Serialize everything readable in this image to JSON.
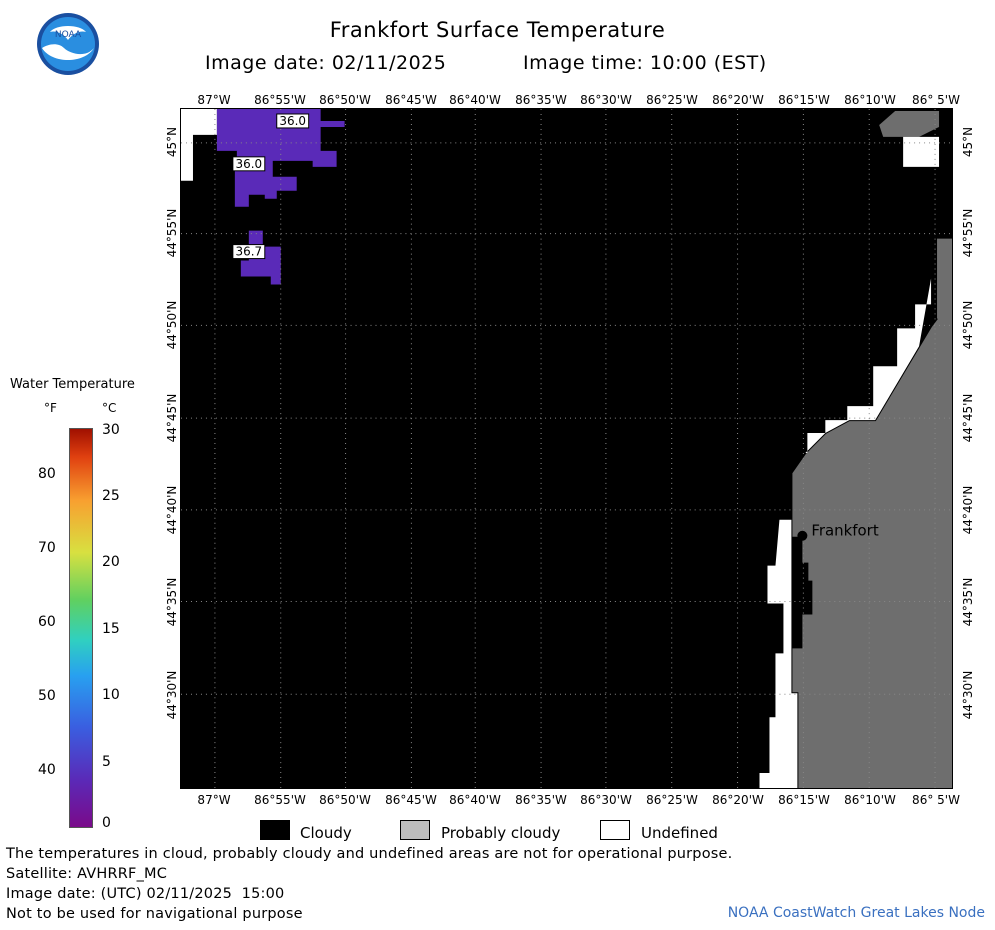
{
  "title": "Frankfort Surface Temperature",
  "image_date_label": "Image date: 02/11/2025",
  "image_time_label": "Image time: 10:00 (EST)",
  "map": {
    "location_label": "Frankfort",
    "lon_labels": [
      "87°W",
      "86°55'W",
      "86°50'W",
      "86°45'W",
      "86°40'W",
      "86°35'W",
      "86°30'W",
      "86°25'W",
      "86°20'W",
      "86°15'W",
      "86°10'W",
      "86° 5'W"
    ],
    "lat_labels": [
      "45°N",
      "44°55'N",
      "44°50'N",
      "44°45'N",
      "44°40'N",
      "44°35'N",
      "44°30'N"
    ],
    "temperature_labels": [
      "36.0",
      "36.0",
      "36.7"
    ],
    "colors": {
      "cloudy": "#000000",
      "probably_cloudy": "#6e6e6e",
      "undefined": "#ffffff",
      "water_36": "#5a2ab8"
    }
  },
  "legend": {
    "title": "Water Temperature",
    "unit_f": "°F",
    "unit_c": "°C",
    "f_ticks": [
      "80",
      "70",
      "60",
      "50",
      "40"
    ],
    "c_ticks": [
      "30",
      "25",
      "20",
      "15",
      "10",
      "5",
      "0"
    ]
  },
  "keys": {
    "cloudy": "Cloudy",
    "probably_cloudy": "Probably cloudy",
    "undefined": "Undefined"
  },
  "footer": {
    "disclaimer": "The temperatures in cloud, probably cloudy and undefined areas are not for operational purpose.",
    "satellite": "Satellite: AVHRRF_MC",
    "utc_date": "Image date: (UTC) 02/11/2025  15:00",
    "nav_warning": "Not to be used for navigational purpose",
    "credit": "NOAA CoastWatch Great Lakes Node"
  }
}
